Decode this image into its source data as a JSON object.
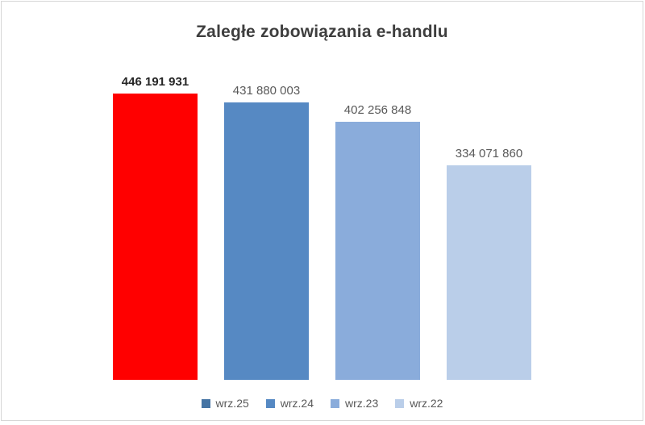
{
  "chart_data": {
    "type": "bar",
    "title": "Zaległe zobowiązania e-handlu",
    "categories": [
      "wrz.25",
      "wrz.24",
      "wrz.23",
      "wrz.22"
    ],
    "values": [
      446191931,
      431880003,
      402256848,
      334071860
    ],
    "value_labels": [
      "446 191 931",
      "431 880 003",
      "402 256 848",
      "334 071 860"
    ],
    "emphasized": [
      true,
      false,
      false,
      false
    ],
    "bar_colors": [
      "#ff0000",
      "#5689c3",
      "#8aacdb",
      "#bacee9"
    ],
    "legend_colors": [
      "#4574a4",
      "#5689c3",
      "#8aacdb",
      "#bacee9"
    ],
    "xlabel": "",
    "ylabel": "",
    "ylim": [
      0,
      446191931
    ],
    "grid": false,
    "axes_visible": false,
    "legend_position": "bottom",
    "colors": {
      "title_text": "#3e3e3e",
      "value_label_text": "#595959",
      "value_label_emphasized_text": "#262626",
      "legend_text": "#595959",
      "frame_border": "#d6d6d6",
      "background": "#ffffff"
    }
  }
}
